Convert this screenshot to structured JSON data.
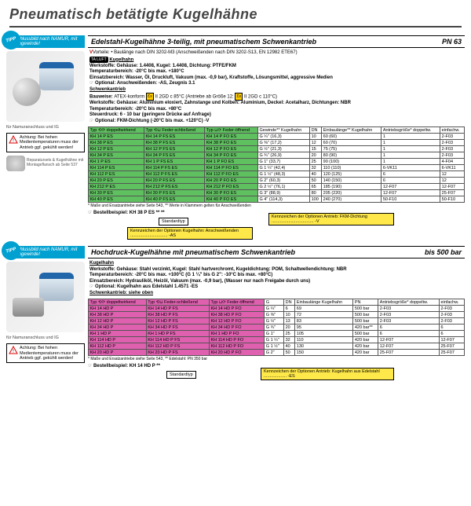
{
  "page_title": "Pneumatisch betätigte Kugelhähne",
  "namur_note": "Anschlussbild nach NAMUR, mit Innengewinde!",
  "tipp": "TIPP",
  "section1": {
    "title": "Edelstahl-Kugelhähne 3-teilig, mit pneumatischem Schwenkantrieb",
    "pn": "PN 63",
    "vorteile": "Vorteile: • Baulänge nach DIN 3202-M3 (Anschweißenden nach DIN 3202-S13, EN 12982 ETE67)",
    "kugelhahn_hdr": "Kugelhahn",
    "werkstoffe1": "Werkstoffe: Gehäuse: 1.4408, Kugel: 1.4408, Dichtung: PTFE/FKM",
    "temp1": "Temperaturbereich: -20°C bis max. +180°C",
    "einsatz1": "Einsatzbereich: Wasser, Öl, Druckluft, Vakuum (max. -0,9 bar), Kraftstoffe, Lösungsmittel, aggressive Medien",
    "optional1": "Optional: Anschweißenden: -AS, Zeugnis 3.1",
    "schwenk_hdr": "Schwenkantrieb",
    "bauweise": "Bauweise: ATEX-konform ⬡ II 2GD c 85°C (Antriebe ab Größe 12: ⬡ II 2GD c 110°C)",
    "werkstoffe2": "Werkstoffe: Gehäuse: Aluminium eloxiert, Zahnstange und Kolben: Aluminium, Deckel: Acetalharz, Dichtungen: NBR",
    "temp2": "Temperaturbereich: -20°C bis max. +80°C",
    "steuer": "Steuerdruck: 6 - 10 bar (geringere Drücke auf Anfrage)",
    "optional2": "Optional: FKM-Dichtung (-20°C bis max. +120°C) -V",
    "table": {
      "head": {
        "c1": "Typ ⟲⟳\ndoppeltwirkend",
        "c2": "Typ ⟲⊔\nFeder-schließend",
        "c3": "Typ ⊔⟳\nFeder-öffnend",
        "c4": "Gewinde**\nKugelhahn",
        "c5": "DN",
        "c6": "Einbaulänge**\nKugelhahn",
        "c7": "Antriebsgröße*\ndoppeltw.",
        "c8": "einfachw."
      },
      "rows": [
        [
          "KH 14 P ES",
          "KH 14 P FS ES",
          "KH 14 P FO ES",
          "G ¼\" (16,3)",
          "10",
          "60 (60)",
          "1",
          "2-F03"
        ],
        [
          "KH 38 P ES",
          "KH 38 P FS ES",
          "KH 38 P FO ES",
          "G ⅜\" (17,2)",
          "12",
          "60 (70)",
          "1",
          "2-F03"
        ],
        [
          "KH 12 P ES",
          "KH 12 P FS ES",
          "KH 12 P FO ES",
          "G ½\" (21,3)",
          "15",
          "75 (75)",
          "1",
          "2-F03"
        ],
        [
          "KH 34 P ES",
          "KH 34 P FS ES",
          "KH 34 P FO ES",
          "G ¾\" (26,9)",
          "20",
          "80 (90)",
          "1",
          "2-F03"
        ],
        [
          "KH 1 P ES",
          "KH 1 P FS ES",
          "KH 1 P FO ES",
          "G 1\" (33,7)",
          "25",
          "90 (100)",
          "1",
          "4-F04"
        ],
        [
          "KH 114 P ES",
          "KH 114 P FS ES",
          "KH 114 P FO ES",
          "G 1 ¼\" (42,4)",
          "32",
          "110 (110)",
          "6-VK11",
          "6-VK11"
        ],
        [
          "KH 112 P ES",
          "KH 112 P FS ES",
          "KH 112 P FO ES",
          "G 1 ½\" (48,3)",
          "40",
          "120 (125)",
          "6",
          "12"
        ],
        [
          "KH 20 P ES",
          "KH 20 P FS ES",
          "KH 20 P FO ES",
          "G 2\" (60,3)",
          "50",
          "140 (150)",
          "6",
          "12"
        ],
        [
          "KH 212 P ES",
          "KH 212 P FS ES",
          "KH 212 P FO ES",
          "G 2 ½\" (76,1)",
          "65",
          "185 (190)",
          "12-F07",
          "12-F07"
        ],
        [
          "KH 30 P ES",
          "KH 30 P FS ES",
          "KH 30 P FO ES",
          "G 3\" (88,9)",
          "80",
          "205 (220)",
          "12-F07",
          "25-F07"
        ],
        [
          "KH 40 P ES",
          "KH 40 P FS ES",
          "KH 40 P FO ES",
          "G 4\" (114,3)",
          "100",
          "240 (270)",
          "50-F10",
          "50-F10"
        ]
      ]
    },
    "table_note": "* Maße und Ersatzantriebe siehe Seite 543, ** Werte in Klammern gelten für Anschweißenden",
    "order_ex": "Bestellbeispiel: KH 38 P ES ** **",
    "callouts": {
      "c1": "Standardtyp",
      "c2": "Kennzeichen der Optionen Kugelhahn:\nAnschweißenden ............................... -AS",
      "c3": "Kennzeichen der Optionen Antrieb:\nFKM-Dichtung ................................... -V"
    },
    "img_cap": "für Namuranschluss und IG",
    "warn": "Achtung: Bei hohen Medientemperaturen muss der Antrieb ggf. gekühlt werden!",
    "spare": "Reparatursets & Kugelhähne mit Montageflansch ab Seite 537"
  },
  "section2": {
    "title": "Hochdruck-Kugelhähne mit pneumatischem Schwenkantrieb",
    "pn": "bis 500 bar",
    "kugelhahn_hdr": "Kugelhahn",
    "werkstoffe": "Werkstoffe: Gehäuse: Stahl verzinkt, Kugel: Stahl hartverchromt, Kugeldichtung: POM, Schaltwellendichtung: NBR",
    "temp": "Temperaturbereich: -20°C bis max. +100°C (G 1 ¼\" bis G 2\": -10°C bis max. +80°C)",
    "einsatz": "Einsatzbereich: Hydrauliköl, Heizöl, Vakuum (max. -0,9 bar), (Wasser nur nach Freigabe durch uns)",
    "optional": "Optional: Kugelhahn aus Edelstahl 1.4571 -ES",
    "schwenk_ref": "Schwenkantrieb: siehe oben",
    "table": {
      "head": {
        "c1": "Typ ⟲⟳\ndoppeltwirkend",
        "c2": "Typ ⟲⊔\nFeder-schließend",
        "c3": "Typ ⊔⟳\nFeder-öffnend",
        "c4": "G",
        "c5": "DN",
        "c6": "Einbaulänge\nKugelhahn",
        "c7": "PN",
        "c8": "Antriebsgröße*\ndoppeltw.",
        "c9": "einfachw."
      },
      "rows": [
        [
          "KH 14 HD P",
          "KH 14 HD P FS",
          "KH 14 HD P FO",
          "G ¼\"",
          "6",
          "69",
          "500 bar",
          "2-F03",
          "2-F03"
        ],
        [
          "KH 38 HD P",
          "KH 38 HD P FS",
          "KH 38 HD P FO",
          "G ⅜\"",
          "10",
          "72",
          "500 bar",
          "2-F03",
          "2-F03"
        ],
        [
          "KH 12 HD P",
          "KH 12 HD P FS",
          "KH 12 HD P FO",
          "G ½\"",
          "13",
          "83",
          "500 bar",
          "2-F03",
          "2-F03"
        ],
        [
          "KH 34 HD P",
          "KH 34 HD P FS",
          "KH 34 HD P FO",
          "G ¾\"",
          "20",
          "95",
          "420 bar**",
          "6",
          "6"
        ],
        [
          "KH 1 HD P",
          "KH 1 HD P FS",
          "KH 1 HD P FO",
          "G 1\"",
          "25",
          "105",
          "500 bar",
          "6",
          "6"
        ],
        [
          "KH 114 HD P",
          "KH 114 HD P FS",
          "KH 114 HD P FO",
          "G 1 ¼\"",
          "32",
          "110",
          "420 bar",
          "12-F07",
          "12-F07"
        ],
        [
          "KH 112 HD P",
          "KH 112 HD P FS",
          "KH 112 HD P FO",
          "G 1 ½\"",
          "40",
          "130",
          "420 bar",
          "12-F07",
          "25-F07"
        ],
        [
          "KH 20 HD P",
          "KH 20 HD P FS",
          "KH 20 HD P FO",
          "G 2\"",
          "50",
          "150",
          "420 bar",
          "25-F07",
          "25-F07"
        ]
      ]
    },
    "table_note": "* Maße und Ersatzantriebe siehe Seite 543, ** Edelstahl: PN 350 bar",
    "order_ex": "Bestellbeispiel: KH 14 HD P **",
    "callouts": {
      "c1": "Standardtyp",
      "c3": "Kennzeichen der Optionen Antrieb:\nKugelhahn aus Edelstahl ................... -ES"
    },
    "img_cap": "für Namuranschluss und IG",
    "warn": "Achtung: Bei hohen Medientemperaturen muss der Antrieb ggf. gekühlt werden!"
  }
}
